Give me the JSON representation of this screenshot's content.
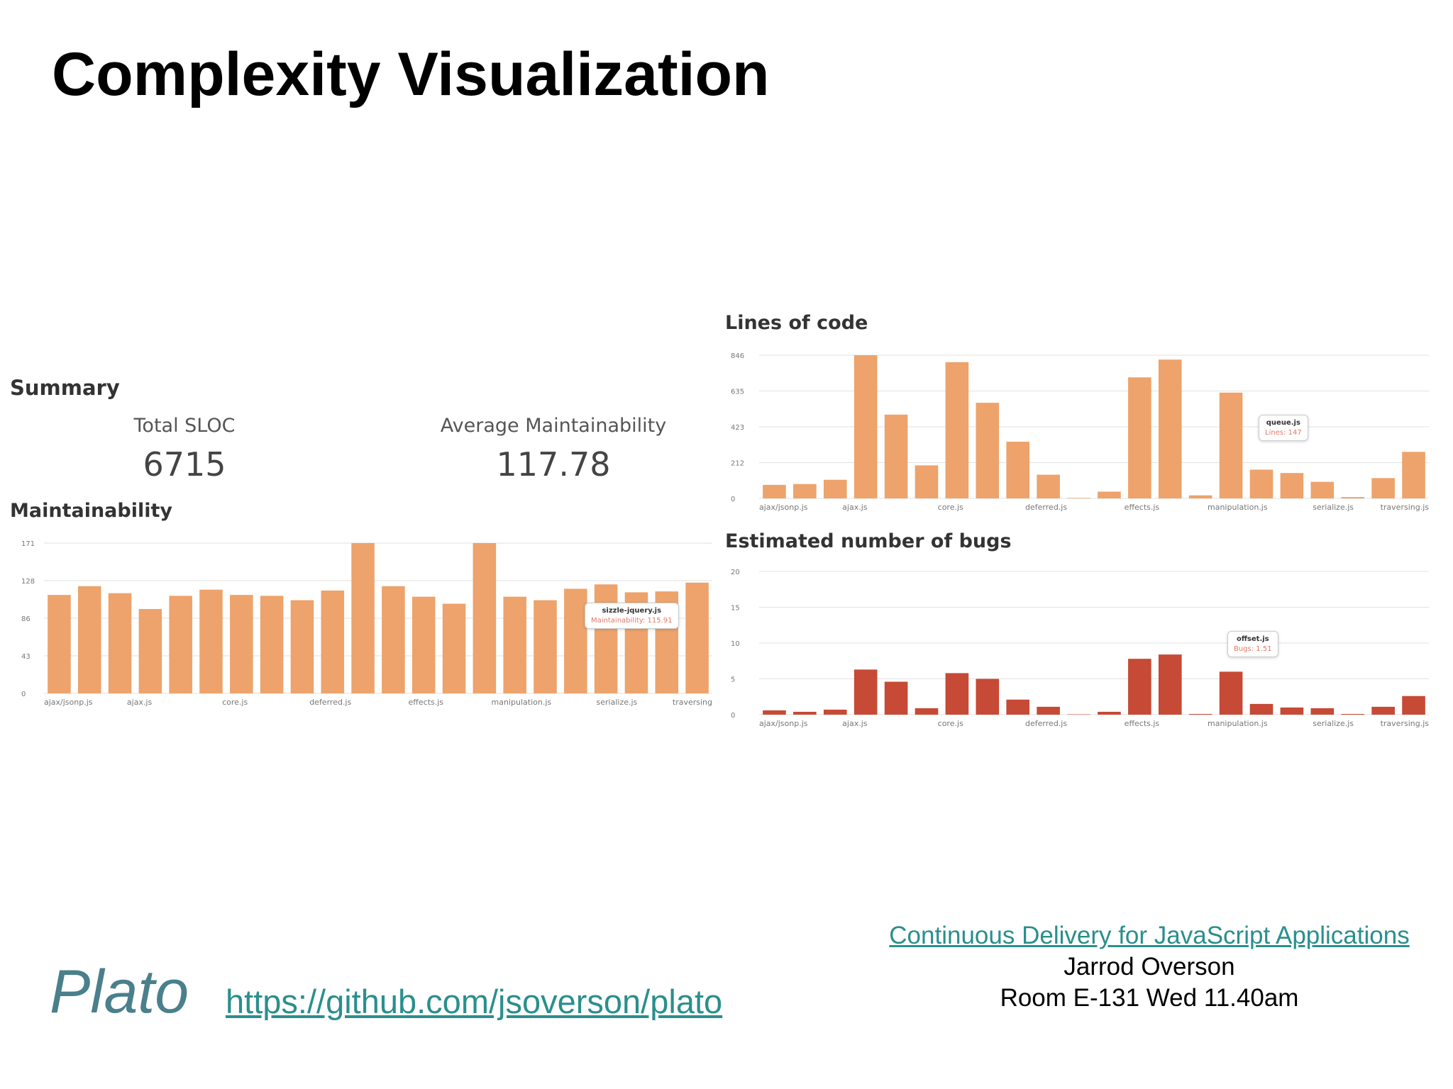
{
  "slide": {
    "title": "Complexity Visualization",
    "plato_label": "Plato",
    "plato_link": "https://github.com/jsoverson/plato"
  },
  "talk": {
    "link": "Continuous Delivery for JavaScript Applications",
    "speaker": "Jarrod Overson",
    "session": "Room E-131 Wed 11.40am"
  },
  "summary": {
    "title": "Summary",
    "stats": [
      {
        "label": "Total SLOC",
        "value": "6715"
      },
      {
        "label": "Average Maintainability",
        "value": "117.78"
      }
    ]
  },
  "colors": {
    "orange": "#eda36b",
    "red": "#c64a35",
    "grid": "#e2e2e2",
    "tick_text": "#777777",
    "link": "#2a8f8c"
  },
  "chart_data": [
    {
      "id": "maintainability",
      "type": "bar",
      "title": "Maintainability",
      "color": "#eda36b",
      "yticks": [
        "0",
        "43",
        "86",
        "128",
        "171"
      ],
      "ylim": [
        0,
        171
      ],
      "grid": true,
      "tick_labels": [
        "ajax/jsonp.js",
        "ajax.js",
        "core.js",
        "deferred.js",
        "effects.js",
        "manipulation.js",
        "serialize.js",
        "traversing"
      ],
      "values": [
        112,
        122,
        114,
        96,
        111,
        118,
        112,
        111,
        106,
        117,
        171,
        122,
        110,
        102,
        171,
        110,
        106,
        119,
        124,
        115,
        116,
        126
      ],
      "tooltip": {
        "name": "sizzle-jquery.js",
        "text": "Maintainability: 115.91"
      }
    },
    {
      "id": "lines-of-code",
      "type": "bar",
      "title": "Lines of code",
      "color": "#eda36b",
      "yticks": [
        "0",
        "212",
        "423",
        "635",
        "846"
      ],
      "ylim": [
        0,
        846
      ],
      "grid": true,
      "tick_labels": [
        "ajax/jsonp.js",
        "ajax.js",
        "core.js",
        "deferred.js",
        "effects.js",
        "manipulation.js",
        "serialize.js",
        "traversing.js"
      ],
      "values": [
        80,
        85,
        110,
        846,
        495,
        195,
        805,
        565,
        335,
        140,
        3,
        40,
        715,
        820,
        18,
        625,
        170,
        150,
        98,
        8,
        120,
        275
      ],
      "tooltip": {
        "name": "queue.js",
        "text": "Lines: 147"
      }
    },
    {
      "id": "estimated-bugs",
      "type": "bar",
      "title": "Estimated number of bugs",
      "color": "#c64a35",
      "yticks": [
        "0",
        "5",
        "10",
        "15",
        "20"
      ],
      "ylim": [
        0,
        20
      ],
      "grid": true,
      "tick_labels": [
        "ajax/jsonp.js",
        "ajax.js",
        "core.js",
        "deferred.js",
        "effects.js",
        "manipulation.js",
        "serialize.js",
        "traversing.js"
      ],
      "values": [
        0.6,
        0.4,
        0.7,
        6.3,
        4.6,
        0.9,
        5.8,
        5.0,
        2.1,
        1.1,
        0.05,
        0.4,
        7.8,
        8.4,
        0.1,
        6.0,
        1.5,
        1.0,
        0.9,
        0.1,
        1.1,
        2.6
      ],
      "tooltip": {
        "name": "offset.js",
        "text": "Bugs: 1.51"
      }
    }
  ]
}
